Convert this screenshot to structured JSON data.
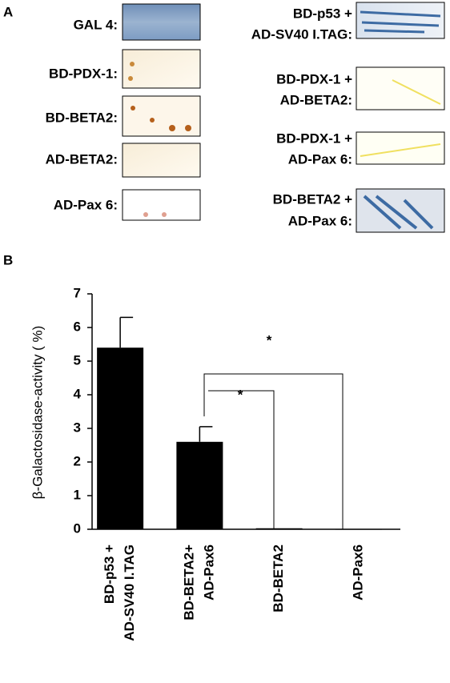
{
  "panel_a": {
    "label": "A",
    "left": [
      "GAL 4:",
      "BD-PDX-1:",
      "BD-BETA2:",
      "AD-BETA2:",
      "AD-Pax 6:"
    ],
    "right": [
      [
        "BD-p53 +",
        "AD-SV40 I.TAG:"
      ],
      [
        "BD-PDX-1 +",
        "AD-BETA2:"
      ],
      [
        "BD-PDX-1 +",
        "AD-Pax 6:"
      ],
      [
        "BD-BETA2 +",
        "AD-Pax 6:"
      ]
    ]
  },
  "chart_data": {
    "type": "bar",
    "panel_label": "B",
    "y_label": "β-Galactosidase-activity ( %)",
    "categories": [
      [
        "BD-p53 +",
        "AD-SV40 I.TAG"
      ],
      [
        "BD-BETA2+",
        "AD-Pax6"
      ],
      [
        "BD-BETA2"
      ],
      [
        "AD-Pax6"
      ]
    ],
    "values": [
      5.4,
      2.6,
      0.03,
      0.01
    ],
    "errors": [
      0.9,
      0.45,
      null,
      null
    ],
    "color": "#000000",
    "ylim": [
      0,
      7
    ],
    "yticks": [
      0,
      1,
      2,
      3,
      4,
      5,
      6,
      7
    ],
    "annotations": [
      "*",
      "*"
    ]
  }
}
